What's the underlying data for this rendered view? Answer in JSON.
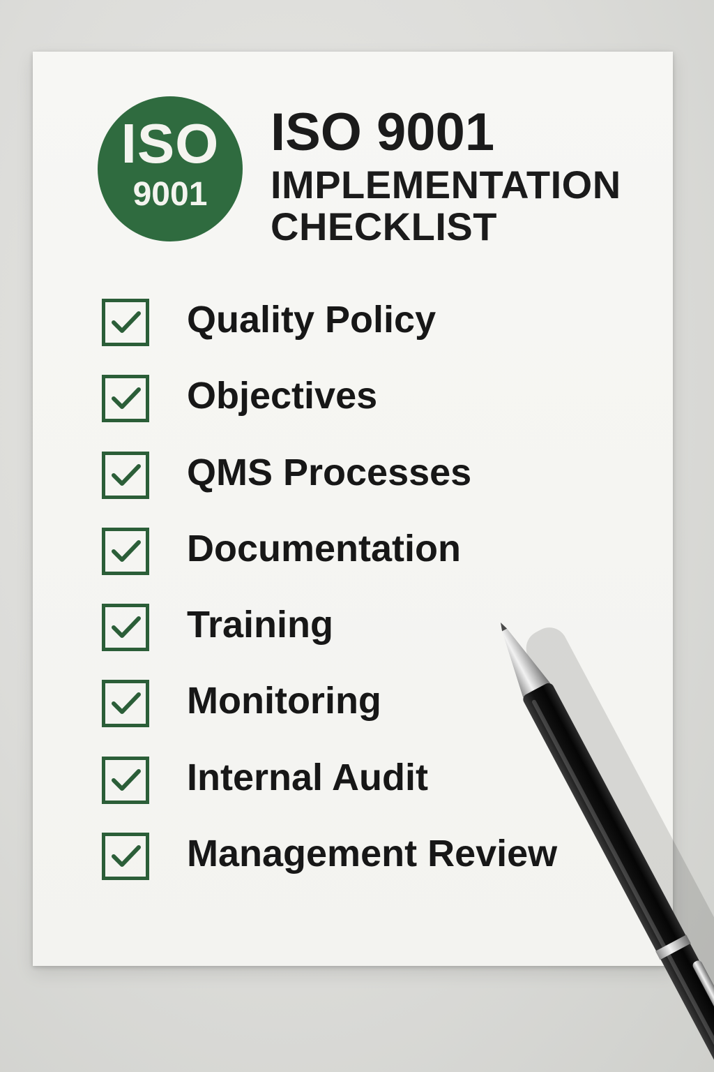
{
  "badge": {
    "line1": "ISO",
    "line2": "9001",
    "color": "#2f6b3f"
  },
  "header": {
    "title": "ISO 9001",
    "subtitle_line1": "IMPLEMENTATION",
    "subtitle_line2": "CHECKLIST"
  },
  "checklist": {
    "check_color": "#2b5e38",
    "items": [
      {
        "label": "Quality Policy",
        "checked": true
      },
      {
        "label": "Objectives",
        "checked": true
      },
      {
        "label": "QMS Processes",
        "checked": true
      },
      {
        "label": "Documentation",
        "checked": true
      },
      {
        "label": "Training",
        "checked": true
      },
      {
        "label": "Monitoring",
        "checked": true
      },
      {
        "label": "Internal Audit",
        "checked": true
      },
      {
        "label": "Management Review",
        "checked": true
      }
    ]
  },
  "icons": {
    "checkbox": "checkmark-icon",
    "pen": "pen-icon"
  }
}
